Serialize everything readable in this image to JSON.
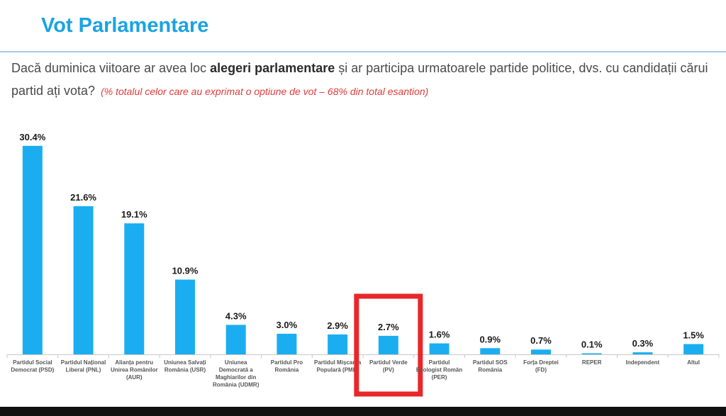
{
  "header": {
    "title": "Vot Parlamentare"
  },
  "question": {
    "text_before": "Dacă duminica viitoare ar avea loc ",
    "text_bold": "alegeri parlamentare",
    "text_after": " și ar participa urmatoarele partide politice, dvs. cu candidații cărui partid ați vota?",
    "note": "(% totalul celor care au exprimat o optiune de vot – 68% din total esantion)"
  },
  "chart_data": {
    "type": "bar",
    "title": "",
    "xlabel": "",
    "ylabel": "",
    "ylim": [
      0,
      31
    ],
    "grid": false,
    "legend": "none",
    "bar_color": "#1aaef0",
    "highlight_color": "#e8272a",
    "highlighted_category": "Partidul Verde (PV)",
    "categories": [
      "Partidul Social Democrat (PSD)",
      "Partidul Național Liberal (PNL)",
      "Alianța pentru Unirea Românilor (AUR)",
      "Uniunea Salvați România (USR)",
      "Uniunea Democrată a Maghiarilor din România (UDMR)",
      "Partidul Pro România",
      "Partidul Mișcarea Populară (PMP)",
      "Partidul Verde (PV)",
      "Partidul Ecologist Român (PER)",
      "Partidul SOS România",
      "Forța Dreptei (FD)",
      "REPER",
      "Independent",
      "Altul"
    ],
    "category_label_lines": [
      [
        "Partidul Social",
        "Democrat (PSD)"
      ],
      [
        "Partidul Național",
        "Liberal (PNL)"
      ],
      [
        "Alianța pentru",
        "Unirea Românilor",
        "(AUR)"
      ],
      [
        "Uniunea Salvați",
        "România (USR)"
      ],
      [
        "Uniunea",
        "Democrată a",
        "Maghiarilor din",
        "România (UDMR)"
      ],
      [
        "Partidul Pro",
        "România"
      ],
      [
        "Partidul Mișcarea",
        "Populară (PMP)"
      ],
      [
        "Partidul Verde",
        "(PV)"
      ],
      [
        "Partidul",
        "Ecologist Român",
        "(PER)"
      ],
      [
        "Partidul SOS",
        "România"
      ],
      [
        "Forța Dreptei",
        "(FD)"
      ],
      [
        "REPER"
      ],
      [
        "Independent"
      ],
      [
        "Altul"
      ]
    ],
    "values": [
      30.4,
      21.6,
      19.1,
      10.9,
      4.3,
      3.0,
      2.9,
      2.7,
      1.6,
      0.9,
      0.7,
      0.1,
      0.3,
      1.5
    ],
    "value_labels": [
      "30.4%",
      "21.6%",
      "19.1%",
      "10.9%",
      "4.3%",
      "3.0%",
      "2.9%",
      "2.7%",
      "1.6%",
      "0.9%",
      "0.7%",
      "0.1%",
      "0.3%",
      "1.5%"
    ]
  }
}
